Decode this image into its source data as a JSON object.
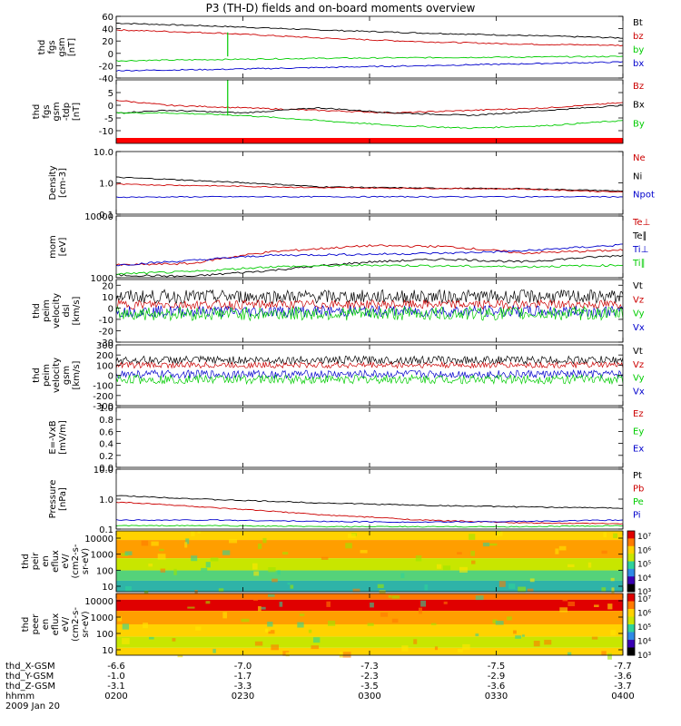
{
  "title": "P3 (TH-D) fields and on-board moments overview",
  "chart_data": [
    {
      "type": "line",
      "ylabel": [
        "thd",
        "fgs",
        "gsm",
        "[nT]"
      ],
      "yticks": [
        "-40",
        "-20",
        "0",
        "20",
        "40",
        "60"
      ],
      "ylim": [
        -40,
        60
      ],
      "legend": [
        {
          "name": "Bt",
          "color": "#000000"
        },
        {
          "name": "bz",
          "color": "#cc0000"
        },
        {
          "name": "by",
          "color": "#00cc00"
        },
        {
          "name": "bx",
          "color": "#0000cc"
        }
      ],
      "series": [
        {
          "name": "Bt",
          "color": "#000000",
          "x": [
            0,
            0.2,
            0.4,
            0.6,
            0.8,
            1
          ],
          "y": [
            49,
            44,
            38,
            33,
            29,
            25
          ]
        },
        {
          "name": "bz",
          "color": "#cc0000",
          "x": [
            0,
            0.2,
            0.4,
            0.6,
            0.8,
            1
          ],
          "y": [
            38,
            33,
            25,
            19,
            15,
            13
          ]
        },
        {
          "name": "by",
          "color": "#00cc00",
          "x": [
            0,
            0.2,
            0.4,
            0.6,
            0.8,
            1
          ],
          "y": [
            -12,
            -10,
            -8,
            -7,
            -6,
            -5
          ]
        },
        {
          "name": "bx",
          "color": "#0000cc",
          "x": [
            0,
            0.2,
            0.4,
            0.6,
            0.8,
            1
          ],
          "y": [
            -28,
            -26,
            -23,
            -20,
            -17,
            -14
          ]
        }
      ],
      "spike": {
        "x": 0.22,
        "series": "by",
        "y": [
          -5,
          34
        ]
      }
    },
    {
      "type": "line",
      "ylabel": [
        "thd",
        "fgs",
        "gsm",
        "-tdp",
        "[nT]"
      ],
      "yticks": [
        "-10",
        "-5",
        "0",
        "5"
      ],
      "ylim": [
        -15,
        10
      ],
      "legend": [
        {
          "name": "Bz",
          "color": "#cc0000"
        },
        {
          "name": "Bx",
          "color": "#000000"
        },
        {
          "name": "By",
          "color": "#00cc00"
        }
      ],
      "series": [
        {
          "name": "Bz",
          "color": "#cc0000",
          "x": [
            0,
            0.1,
            0.25,
            0.4,
            0.55,
            0.7,
            0.85,
            1
          ],
          "y": [
            2,
            0,
            -1,
            -2,
            -3,
            -2,
            -1,
            1
          ]
        },
        {
          "name": "Bx",
          "color": "#000000",
          "x": [
            0,
            0.1,
            0.25,
            0.4,
            0.55,
            0.7,
            0.85,
            1
          ],
          "y": [
            -3,
            -2,
            -3,
            -1,
            -3,
            -4,
            -2,
            0
          ]
        },
        {
          "name": "By",
          "color": "#00cc00",
          "x": [
            0,
            0.1,
            0.25,
            0.4,
            0.55,
            0.7,
            0.85,
            1
          ],
          "y": [
            -3,
            -3,
            -4,
            -6,
            -8,
            -9,
            -8,
            -6
          ]
        }
      ],
      "spike": {
        "x": 0.22,
        "series": "By",
        "y": [
          -4,
          10
        ]
      },
      "red_bar": true
    },
    {
      "type": "line",
      "log": true,
      "ylabel": [
        "Density",
        "[cm-3]"
      ],
      "yticks": [
        "0.1",
        "1.0",
        "10.0"
      ],
      "ylim": [
        0.1,
        10
      ],
      "legend": [
        {
          "name": "Ne",
          "color": "#cc0000"
        },
        {
          "name": "Ni",
          "color": "#000000"
        },
        {
          "name": "Npot",
          "color": "#0000cc"
        }
      ],
      "series": [
        {
          "name": "Ni",
          "color": "#000000",
          "x": [
            0,
            0.2,
            0.4,
            0.6,
            0.8,
            1
          ],
          "y": [
            1.5,
            1.1,
            0.75,
            0.68,
            0.65,
            0.55
          ]
        },
        {
          "name": "Ne",
          "color": "#cc0000",
          "x": [
            0,
            0.2,
            0.4,
            0.6,
            0.8,
            1
          ],
          "y": [
            0.9,
            0.8,
            0.7,
            0.67,
            0.64,
            0.5
          ]
        },
        {
          "name": "Npot",
          "color": "#0000cc",
          "x": [
            0,
            0.2,
            0.4,
            0.6,
            0.8,
            1
          ],
          "y": [
            0.35,
            0.36,
            0.36,
            0.36,
            0.36,
            0.36
          ]
        }
      ]
    },
    {
      "type": "line",
      "log": true,
      "ylabel": [
        "mom",
        "[eV]"
      ],
      "yticks": [
        "1000",
        "10000"
      ],
      "ylim": [
        1000,
        10000
      ],
      "legend": [
        {
          "name": "Te⊥",
          "color": "#cc0000"
        },
        {
          "name": "Te∥",
          "color": "#000000"
        },
        {
          "name": "Ti⊥",
          "color": "#0000cc"
        },
        {
          "name": "Ti∥",
          "color": "#00cc00"
        }
      ],
      "series": [
        {
          "name": "Te⊥",
          "color": "#cc0000",
          "x": [
            0,
            0.15,
            0.3,
            0.5,
            0.65,
            0.8,
            1
          ],
          "y": [
            1600,
            1700,
            2600,
            3300,
            3200,
            2500,
            2800
          ]
        },
        {
          "name": "Te∥",
          "color": "#000000",
          "x": [
            0,
            0.15,
            0.3,
            0.5,
            0.65,
            0.8,
            1
          ],
          "y": [
            1100,
            1050,
            1300,
            1800,
            2000,
            1800,
            2300
          ]
        },
        {
          "name": "Ti⊥",
          "color": "#0000cc",
          "x": [
            0,
            0.15,
            0.3,
            0.5,
            0.65,
            0.8,
            1
          ],
          "y": [
            1600,
            1900,
            2300,
            2400,
            2500,
            2700,
            3400
          ]
        },
        {
          "name": "Ti∥",
          "color": "#00cc00",
          "x": [
            0,
            0.15,
            0.3,
            0.5,
            0.65,
            0.8,
            1
          ],
          "y": [
            1150,
            1250,
            1500,
            1600,
            1550,
            1500,
            1600
          ]
        }
      ]
    },
    {
      "type": "line",
      "noisy": true,
      "ylabel": [
        "thd",
        "peim",
        "velocity",
        "dsl",
        "[km/s]"
      ],
      "yticks": [
        "-30",
        "-20",
        "-10",
        "0",
        "10",
        "20"
      ],
      "ylim": [
        -30,
        25
      ],
      "legend": [
        {
          "name": "Vt",
          "color": "#000000"
        },
        {
          "name": "Vz",
          "color": "#cc0000"
        },
        {
          "name": "Vy",
          "color": "#00cc00"
        },
        {
          "name": "Vx",
          "color": "#0000cc"
        }
      ],
      "series": [
        {
          "name": "Vt",
          "color": "#000000",
          "base": 10,
          "amp": 6
        },
        {
          "name": "Vz",
          "color": "#cc0000",
          "base": 3,
          "amp": 4
        },
        {
          "name": "Vx",
          "color": "#0000cc",
          "base": -3,
          "amp": 5
        },
        {
          "name": "Vy",
          "color": "#00cc00",
          "base": -5,
          "amp": 6
        }
      ]
    },
    {
      "type": "line",
      "noisy": true,
      "ylabel": [
        "thd",
        "peim",
        "velocity",
        "gsm",
        "[km/s]"
      ],
      "yticks": [
        "-300",
        "-200",
        "-100",
        "0",
        "100",
        "200",
        "300"
      ],
      "ylim": [
        -300,
        300
      ],
      "legend": [
        {
          "name": "Vt",
          "color": "#000000"
        },
        {
          "name": "Vz",
          "color": "#cc0000"
        },
        {
          "name": "Vy",
          "color": "#00cc00"
        },
        {
          "name": "Vx",
          "color": "#0000cc"
        }
      ],
      "series": [
        {
          "name": "Vt",
          "color": "#000000",
          "base": 150,
          "amp": 40
        },
        {
          "name": "Vz",
          "color": "#cc0000",
          "base": 100,
          "amp": 30
        },
        {
          "name": "Vx",
          "color": "#0000cc",
          "base": 10,
          "amp": 40
        },
        {
          "name": "Vy",
          "color": "#00cc00",
          "base": -40,
          "amp": 45
        }
      ]
    },
    {
      "type": "line",
      "ylabel": [
        "E=-VxB",
        "[mV/m]"
      ],
      "yticks": [
        "0.0",
        "0.2",
        "0.4",
        "0.6",
        "0.8",
        "1.0"
      ],
      "ylim": [
        0,
        1
      ],
      "legend": [
        {
          "name": "Ez",
          "color": "#cc0000"
        },
        {
          "name": "Ey",
          "color": "#00cc00"
        },
        {
          "name": "Ex",
          "color": "#0000cc"
        }
      ],
      "series": []
    },
    {
      "type": "line",
      "log": true,
      "ylabel": [
        "Pressure",
        "[nPa]"
      ],
      "yticks": [
        "0.1",
        "1.0",
        "10.0"
      ],
      "ylim": [
        0.1,
        10
      ],
      "legend": [
        {
          "name": "Pt",
          "color": "#000000"
        },
        {
          "name": "Pb",
          "color": "#cc0000"
        },
        {
          "name": "Pe",
          "color": "#00cc00"
        },
        {
          "name": "Pi",
          "color": "#0000cc"
        }
      ],
      "series": [
        {
          "name": "Pt",
          "color": "#000000",
          "x": [
            0,
            0.2,
            0.4,
            0.6,
            0.8,
            1
          ],
          "y": [
            1.3,
            0.95,
            0.75,
            0.62,
            0.55,
            0.5
          ]
        },
        {
          "name": "Pb",
          "color": "#cc0000",
          "x": [
            0,
            0.2,
            0.4,
            0.6,
            0.8,
            1
          ],
          "y": [
            0.8,
            0.5,
            0.3,
            0.2,
            0.16,
            0.15
          ]
        },
        {
          "name": "Pi",
          "color": "#0000cc",
          "x": [
            0,
            0.2,
            0.4,
            0.6,
            0.8,
            1
          ],
          "y": [
            0.2,
            0.2,
            0.18,
            0.17,
            0.18,
            0.2
          ]
        },
        {
          "name": "Pe",
          "color": "#00cc00",
          "x": [
            0,
            0.2,
            0.4,
            0.6,
            0.8,
            1
          ],
          "y": [
            0.13,
            0.13,
            0.12,
            0.12,
            0.12,
            0.13
          ]
        }
      ]
    },
    {
      "type": "heatmap",
      "ylabel": [
        "thd",
        "peir",
        "en",
        "eflux",
        "eV/",
        "(cm2-s-",
        "sr-eV)"
      ],
      "yticks": [
        "10",
        "100",
        "1000",
        "10000"
      ],
      "colorbar": [
        "10³",
        "10⁴",
        "10⁵",
        "10⁶",
        "10⁷"
      ],
      "bands": [
        {
          "from": 1.0,
          "to": 0.85,
          "color": "#ffd200"
        },
        {
          "from": 0.85,
          "to": 0.55,
          "color": "#ff9e00"
        },
        {
          "from": 0.55,
          "to": 0.35,
          "color": "#c8e600"
        },
        {
          "from": 0.35,
          "to": 0.18,
          "color": "#55d27a"
        },
        {
          "from": 0.18,
          "to": 0.0,
          "color": "#2fb3a8"
        }
      ]
    },
    {
      "type": "heatmap",
      "ylabel": [
        "thd",
        "peer",
        "en",
        "eflux",
        "eV/",
        "(cm2-s-",
        "sr-eV)"
      ],
      "yticks": [
        "10",
        "100",
        "1000",
        "10000"
      ],
      "colorbar": [
        "10³",
        "10⁴",
        "10⁵",
        "10⁶",
        "10⁷"
      ],
      "bands": [
        {
          "from": 1.0,
          "to": 0.9,
          "color": "#ff7a00"
        },
        {
          "from": 0.9,
          "to": 0.72,
          "color": "#e00000"
        },
        {
          "from": 0.72,
          "to": 0.5,
          "color": "#ff9e00"
        },
        {
          "from": 0.5,
          "to": 0.3,
          "color": "#ffd200"
        },
        {
          "from": 0.3,
          "to": 0.12,
          "color": "#c8e600"
        },
        {
          "from": 0.12,
          "to": 0.0,
          "color": "#ffd200"
        }
      ]
    }
  ],
  "xaxis": {
    "rows": [
      {
        "label": "thd_X-GSM",
        "values": [
          "-6.6",
          "-7.0",
          "-7.3",
          "-7.5",
          "-7.7"
        ]
      },
      {
        "label": "thd_Y-GSM",
        "values": [
          "-1.0",
          "-1.7",
          "-2.3",
          "-2.9",
          "-3.6"
        ]
      },
      {
        "label": "thd_Z-GSM",
        "values": [
          "-3.1",
          "-3.3",
          "-3.5",
          "-3.6",
          "-3.7"
        ]
      },
      {
        "label": "hhmm",
        "values": [
          "0200",
          "0230",
          "0300",
          "0330",
          "0400"
        ]
      }
    ],
    "date": "2009 Jan 20"
  }
}
